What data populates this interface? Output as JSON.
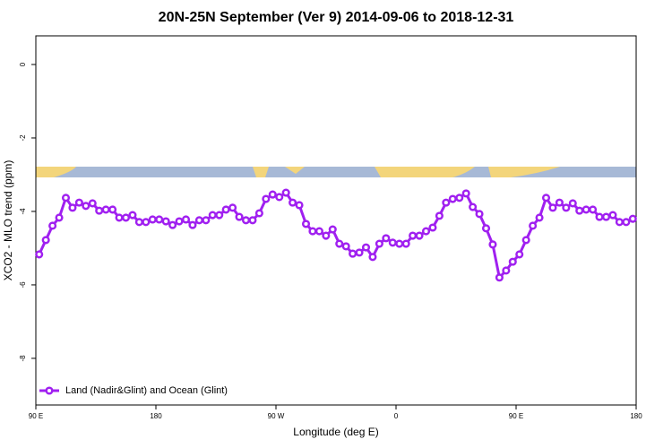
{
  "chart_data": {
    "type": "line",
    "title": "20N-25N September (Ver 9)   2014-09-06 to 2018-12-31",
    "x_label": "Longitude (deg E)",
    "y_label": "XCO2 - MLO trend (ppm)",
    "x": [
      92.5,
      97.5,
      102.5,
      107.5,
      112.5,
      117.5,
      122.5,
      127.5,
      132.5,
      137.5,
      142.5,
      147.5,
      152.5,
      157.5,
      162.5,
      167.5,
      172.5,
      177.5,
      182.5,
      187.5,
      192.5,
      197.5,
      202.5,
      207.5,
      212.5,
      217.5,
      222.5,
      227.5,
      232.5,
      237.5,
      242.5,
      247.5,
      252.5,
      257.5,
      262.5,
      267.5,
      272.5,
      277.5,
      282.5,
      287.5,
      292.5,
      297.5,
      302.5,
      307.5,
      312.5,
      317.5,
      322.5,
      327.5,
      332.5,
      337.5,
      342.5,
      347.5,
      352.5,
      357.5,
      362.5,
      367.5,
      372.5,
      377.5,
      382.5,
      387.5,
      392.5,
      397.5,
      402.5,
      407.5,
      412.5,
      417.5,
      422.5,
      427.5,
      432.5,
      437.5,
      442.5,
      447.5,
      452.5,
      457.5,
      462.5,
      467.5,
      472.5,
      477.5,
      482.5,
      487.5,
      492.5,
      497.5,
      502.5,
      507.5,
      512.5,
      517.5,
      522.5,
      527.5,
      532.5,
      537.5
    ],
    "series": [
      {
        "name": "Land (Nadir&Glint) and Ocean (Glint)",
        "color": "#a020f0",
        "values": [
          -5.17,
          -4.78,
          -4.39,
          -4.17,
          -3.63,
          -3.9,
          -3.76,
          -3.85,
          -3.78,
          -3.98,
          -3.95,
          -3.95,
          -4.17,
          -4.17,
          -4.1,
          -4.29,
          -4.29,
          -4.22,
          -4.22,
          -4.27,
          -4.37,
          -4.27,
          -4.22,
          -4.37,
          -4.24,
          -4.24,
          -4.1,
          -4.1,
          -3.95,
          -3.9,
          -4.15,
          -4.24,
          -4.24,
          -4.05,
          -3.66,
          -3.54,
          -3.61,
          -3.49,
          -3.76,
          -3.83,
          -4.34,
          -4.54,
          -4.54,
          -4.66,
          -4.49,
          -4.88,
          -4.95,
          -5.15,
          -5.12,
          -4.98,
          -5.24,
          -4.88,
          -4.73,
          -4.85,
          -4.88,
          -4.88,
          -4.66,
          -4.66,
          -4.54,
          -4.44,
          -4.12,
          -3.76,
          -3.66,
          -3.63,
          -3.51,
          -3.88,
          -4.07,
          -4.46,
          -4.9,
          -5.8,
          -5.61,
          -5.37,
          -5.17,
          -4.78,
          -4.39,
          -4.17,
          -3.63,
          -3.9,
          -3.76,
          -3.9,
          -3.78,
          -3.98,
          -3.95,
          -3.95,
          -4.15,
          -4.15,
          -4.1,
          -4.29,
          -4.29,
          -4.2
        ]
      }
    ],
    "xlim": [
      90,
      540
    ],
    "xticks": [
      {
        "value": 90,
        "label": "90 E"
      },
      180,
      {
        "value": 270,
        "label": "90 W"
      },
      {
        "value": 360,
        "label": "0"
      },
      {
        "value": 450,
        "label": "90 E"
      },
      {
        "value": 540,
        "label": "180"
      }
    ],
    "ylim": [
      -9.27,
      0.78
    ],
    "yticks": [
      0,
      -2,
      -4,
      -6,
      -8
    ],
    "legend": "bottom-left"
  }
}
